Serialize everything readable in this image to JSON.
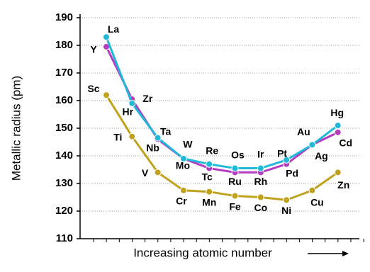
{
  "chart_data": {
    "type": "line",
    "y_label": "Metallic radius (pm)",
    "x_label": "Increasing atomic number",
    "categories": [
      null,
      null,
      null,
      null,
      null,
      null,
      null,
      null,
      null,
      null
    ],
    "ylim": [
      110,
      190
    ],
    "yticks": [
      110,
      120,
      130,
      140,
      150,
      160,
      170,
      180,
      190
    ],
    "grid": true,
    "series": [
      {
        "color": "#c0a21c",
        "values": [
          162,
          147,
          134,
          127.5,
          127,
          125.5,
          125,
          124,
          127.5,
          134
        ],
        "point_labels": [
          "Sc",
          "Ti",
          "V",
          "Cr",
          "Mn",
          "Fe",
          "Co",
          "Ni",
          "Cu",
          "Zn"
        ]
      },
      {
        "color": "#b43cc0",
        "values": [
          179.5,
          160.5,
          146,
          139,
          135.5,
          134,
          134,
          137,
          144,
          148.5
        ],
        "point_labels": [
          "Y",
          "Zr",
          "Nb",
          "Mo",
          "Tc",
          "Ru",
          "Rh",
          "Pd",
          "Ag",
          "Cd"
        ]
      },
      {
        "color": "#1fb8d8",
        "values": [
          183,
          159,
          146.5,
          139,
          137,
          135.5,
          135.5,
          138.5,
          144,
          151
        ],
        "point_labels": [
          "La",
          "Hr",
          "Ta",
          "W",
          "Re",
          "Os",
          "Ir",
          "Pt",
          "Au",
          "Hg"
        ]
      }
    ]
  }
}
